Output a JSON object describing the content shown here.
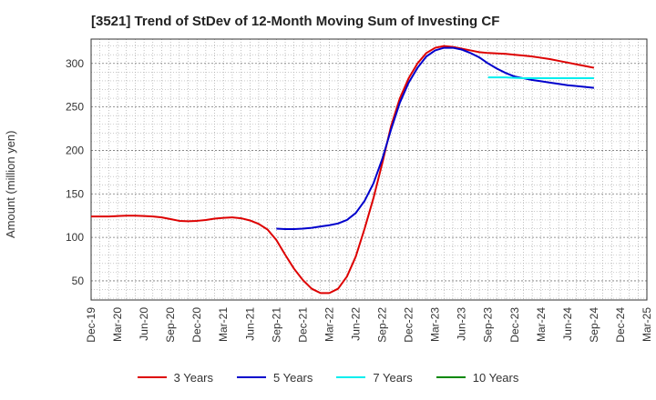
{
  "chart_data": {
    "type": "line",
    "title": "[3521]  Trend of StDev of 12-Month Moving Sum of Investing CF",
    "xlabel": "",
    "ylabel": "Amount (million yen)",
    "ylim": [
      28,
      328
    ],
    "yticks": [
      50,
      100,
      150,
      200,
      250,
      300
    ],
    "x_tick_labels": [
      "Dec-19",
      "Mar-20",
      "Jun-20",
      "Sep-20",
      "Dec-20",
      "Mar-21",
      "Jun-21",
      "Sep-21",
      "Dec-21",
      "Mar-22",
      "Jun-22",
      "Sep-22",
      "Dec-22",
      "Mar-23",
      "Jun-23",
      "Sep-23",
      "Dec-23",
      "Mar-24",
      "Jun-24",
      "Sep-24",
      "Dec-24",
      "Mar-25"
    ],
    "grid": true,
    "legend_position": "bottom",
    "series": [
      {
        "name": "3 Years",
        "color": "#dd0000",
        "x": [
          "Dec-19",
          "Jan-20",
          "Feb-20",
          "Mar-20",
          "Apr-20",
          "May-20",
          "Jun-20",
          "Jul-20",
          "Aug-20",
          "Sep-20",
          "Oct-20",
          "Nov-20",
          "Dec-20",
          "Jan-21",
          "Feb-21",
          "Mar-21",
          "Apr-21",
          "May-21",
          "Jun-21",
          "Jul-21",
          "Aug-21",
          "Sep-21",
          "Oct-21",
          "Nov-21",
          "Dec-21",
          "Jan-22",
          "Feb-22",
          "Mar-22",
          "Apr-22",
          "May-22",
          "Jun-22",
          "Jul-22",
          "Aug-22",
          "Sep-22",
          "Oct-22",
          "Nov-22",
          "Dec-22",
          "Jan-23",
          "Feb-23",
          "Mar-23",
          "Apr-23",
          "May-23",
          "Jun-23",
          "Jul-23",
          "Aug-23",
          "Sep-23",
          "Oct-23",
          "Nov-23",
          "Dec-23",
          "Jan-24",
          "Feb-24",
          "Mar-24",
          "Apr-24",
          "May-24",
          "Jun-24",
          "Jul-24",
          "Aug-24",
          "Sep-24"
        ],
        "values": [
          124,
          124,
          124,
          124.5,
          125,
          125,
          124.5,
          124,
          123,
          121,
          119,
          118.5,
          119,
          120,
          121.5,
          122.5,
          123,
          122,
          119.5,
          115.5,
          109,
          97,
          80,
          64,
          51,
          41,
          36,
          36,
          41,
          55,
          78,
          110,
          145,
          185,
          228,
          260,
          283,
          300,
          312,
          318,
          320,
          319,
          317,
          315,
          313,
          312,
          311.5,
          311,
          310,
          309,
          308,
          306.5,
          305,
          303,
          301,
          299,
          297,
          295
        ]
      },
      {
        "name": "5 Years",
        "color": "#0000cc",
        "x": [
          "Sep-21",
          "Oct-21",
          "Nov-21",
          "Dec-21",
          "Jan-22",
          "Feb-22",
          "Mar-22",
          "Apr-22",
          "May-22",
          "Jun-22",
          "Jul-22",
          "Aug-22",
          "Sep-22",
          "Oct-22",
          "Nov-22",
          "Dec-22",
          "Jan-23",
          "Feb-23",
          "Mar-23",
          "Apr-23",
          "May-23",
          "Jun-23",
          "Jul-23",
          "Aug-23",
          "Sep-23",
          "Oct-23",
          "Nov-23",
          "Dec-23",
          "Jan-24",
          "Feb-24",
          "Mar-24",
          "Apr-24",
          "May-24",
          "Jun-24",
          "Jul-24",
          "Aug-24",
          "Sep-24"
        ],
        "values": [
          110,
          109.5,
          109.5,
          110,
          111,
          112.5,
          114,
          116,
          120,
          128,
          142,
          162,
          190,
          224,
          255,
          278,
          295,
          308,
          315,
          318,
          318,
          316,
          312,
          307,
          300,
          294,
          289,
          285,
          283,
          281,
          279.5,
          278,
          276.5,
          275,
          274,
          273,
          272
        ]
      },
      {
        "name": "7 Years",
        "color": "#00eeee",
        "x": [
          "Sep-23",
          "Oct-23",
          "Nov-23",
          "Dec-23",
          "Jan-24",
          "Feb-24",
          "Mar-24",
          "Apr-24",
          "May-24",
          "Jun-24",
          "Jul-24",
          "Aug-24",
          "Sep-24"
        ],
        "values": [
          284,
          284,
          284,
          283.5,
          283,
          283,
          283,
          283,
          283,
          283,
          283,
          283,
          283
        ]
      },
      {
        "name": "10 Years",
        "color": "#008800",
        "x": [],
        "values": []
      }
    ]
  }
}
